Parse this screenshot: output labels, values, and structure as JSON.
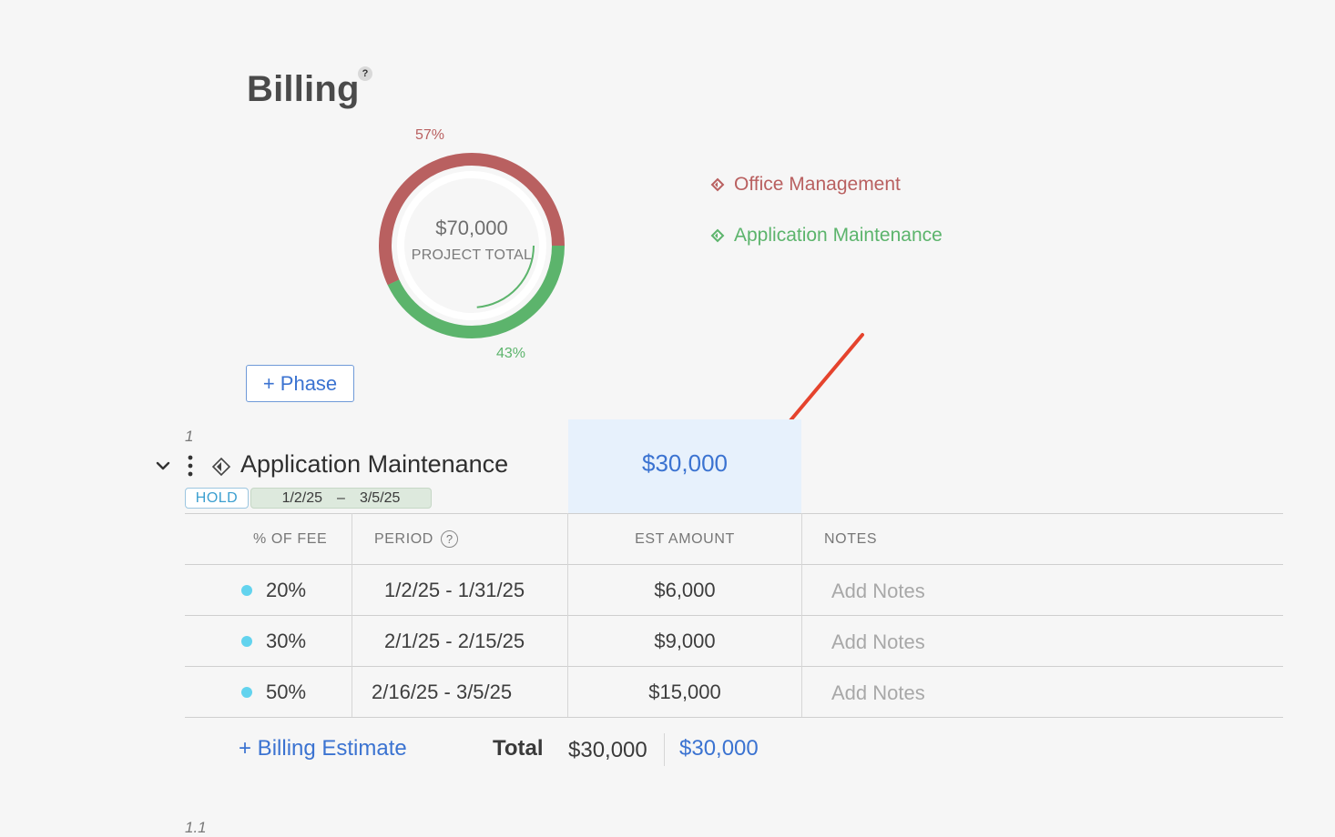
{
  "header": {
    "title": "Billing",
    "help_icon": "?"
  },
  "donut": {
    "total": "$70,000",
    "total_label": "PROJECT TOTAL",
    "segments": [
      {
        "name": "Office Management",
        "percent_label": "57%",
        "fraction": 0.57,
        "color": "#b96060"
      },
      {
        "name": "Application Maintenance",
        "percent_label": "43%",
        "fraction": 0.43,
        "color": "#5cb46c"
      }
    ]
  },
  "legend": {
    "items": [
      {
        "label": "Office Management",
        "color": "#b96060"
      },
      {
        "label": "Application Maintenance",
        "color": "#5cb46c"
      }
    ]
  },
  "add_phase_label": "+ Phase",
  "phase": {
    "number": "1",
    "name": "Application Maintenance",
    "amount": "$30,000",
    "status": "HOLD",
    "start_date": "1/2/25",
    "date_separator": "–",
    "end_date": "3/5/25"
  },
  "table": {
    "headers": {
      "fee": "% OF FEE",
      "period": "PERIOD",
      "period_help": "?",
      "amount": "EST AMOUNT",
      "notes": "NOTES"
    },
    "rows": [
      {
        "fee": "20%",
        "period": "1/2/25 - 1/31/25",
        "amount": "$6,000",
        "notes": "Add Notes"
      },
      {
        "fee": "30%",
        "period": "2/1/25 - 2/15/25",
        "amount": "$9,000",
        "notes": "Add Notes"
      },
      {
        "fee": "50%",
        "period": "2/16/25 - 3/5/25",
        "amount": "$15,000",
        "notes": "Add Notes"
      }
    ]
  },
  "footer": {
    "add_estimate": "+ Billing Estimate",
    "total_label": "Total",
    "total_estimate": "$30,000",
    "total_fee": "$30,000"
  },
  "next_phase_number": "1.1",
  "colors": {
    "accent": "#3b73d1",
    "office": "#b96060",
    "application": "#5cb46c",
    "highlight": "#e7f1fc",
    "arrow": "#e5432d"
  }
}
